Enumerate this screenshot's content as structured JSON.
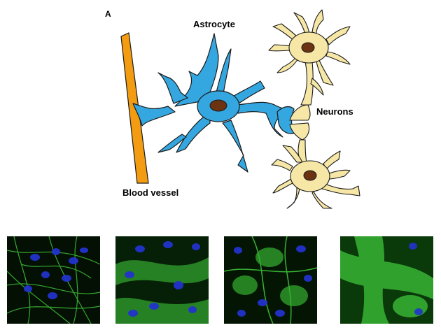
{
  "figure": {
    "panel_label": "A",
    "labels": {
      "astrocyte": "Astrocyte",
      "neurons": "Neurons",
      "blood_vessel": "Blood vessel"
    },
    "colors": {
      "blood_vessel": "#f39c12",
      "astrocyte": "#35a7e0",
      "neuron": "#f6e7a6",
      "nucleus": "#6b3312",
      "micro_background": "#041004",
      "micro_stain_green": "#3fc43a",
      "micro_stain_blue": "#2233cc"
    }
  },
  "micrographs": [
    {
      "id": "micro-1"
    },
    {
      "id": "micro-2"
    },
    {
      "id": "micro-3"
    },
    {
      "id": "micro-4"
    }
  ]
}
